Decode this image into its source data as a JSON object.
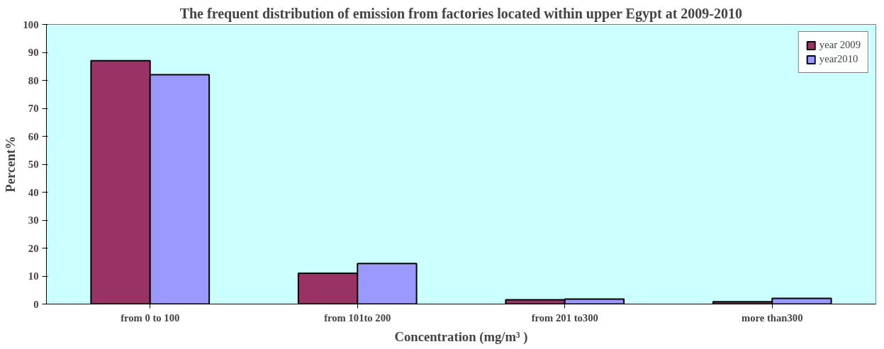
{
  "chart_data": {
    "type": "bar",
    "title": "The frequent distribution of emission from factories located within upper Egypt at 2009-2010",
    "xlabel": "Concentration (mg/m³ )",
    "ylabel": "Percent%",
    "categories": [
      "from 0 to 100",
      "from 101to 200",
      "from 201 to300",
      "more than300"
    ],
    "series": [
      {
        "name": "year 2009",
        "color": "#993366",
        "values": [
          87,
          11,
          1.5,
          0.8
        ]
      },
      {
        "name": "year2010",
        "color": "#9999ff",
        "values": [
          82,
          14.5,
          1.8,
          2
        ]
      }
    ],
    "ylim": [
      0,
      100
    ],
    "yticks": [
      0,
      10,
      20,
      30,
      40,
      50,
      60,
      70,
      80,
      90,
      100
    ],
    "grid": false,
    "legend": "top right"
  }
}
